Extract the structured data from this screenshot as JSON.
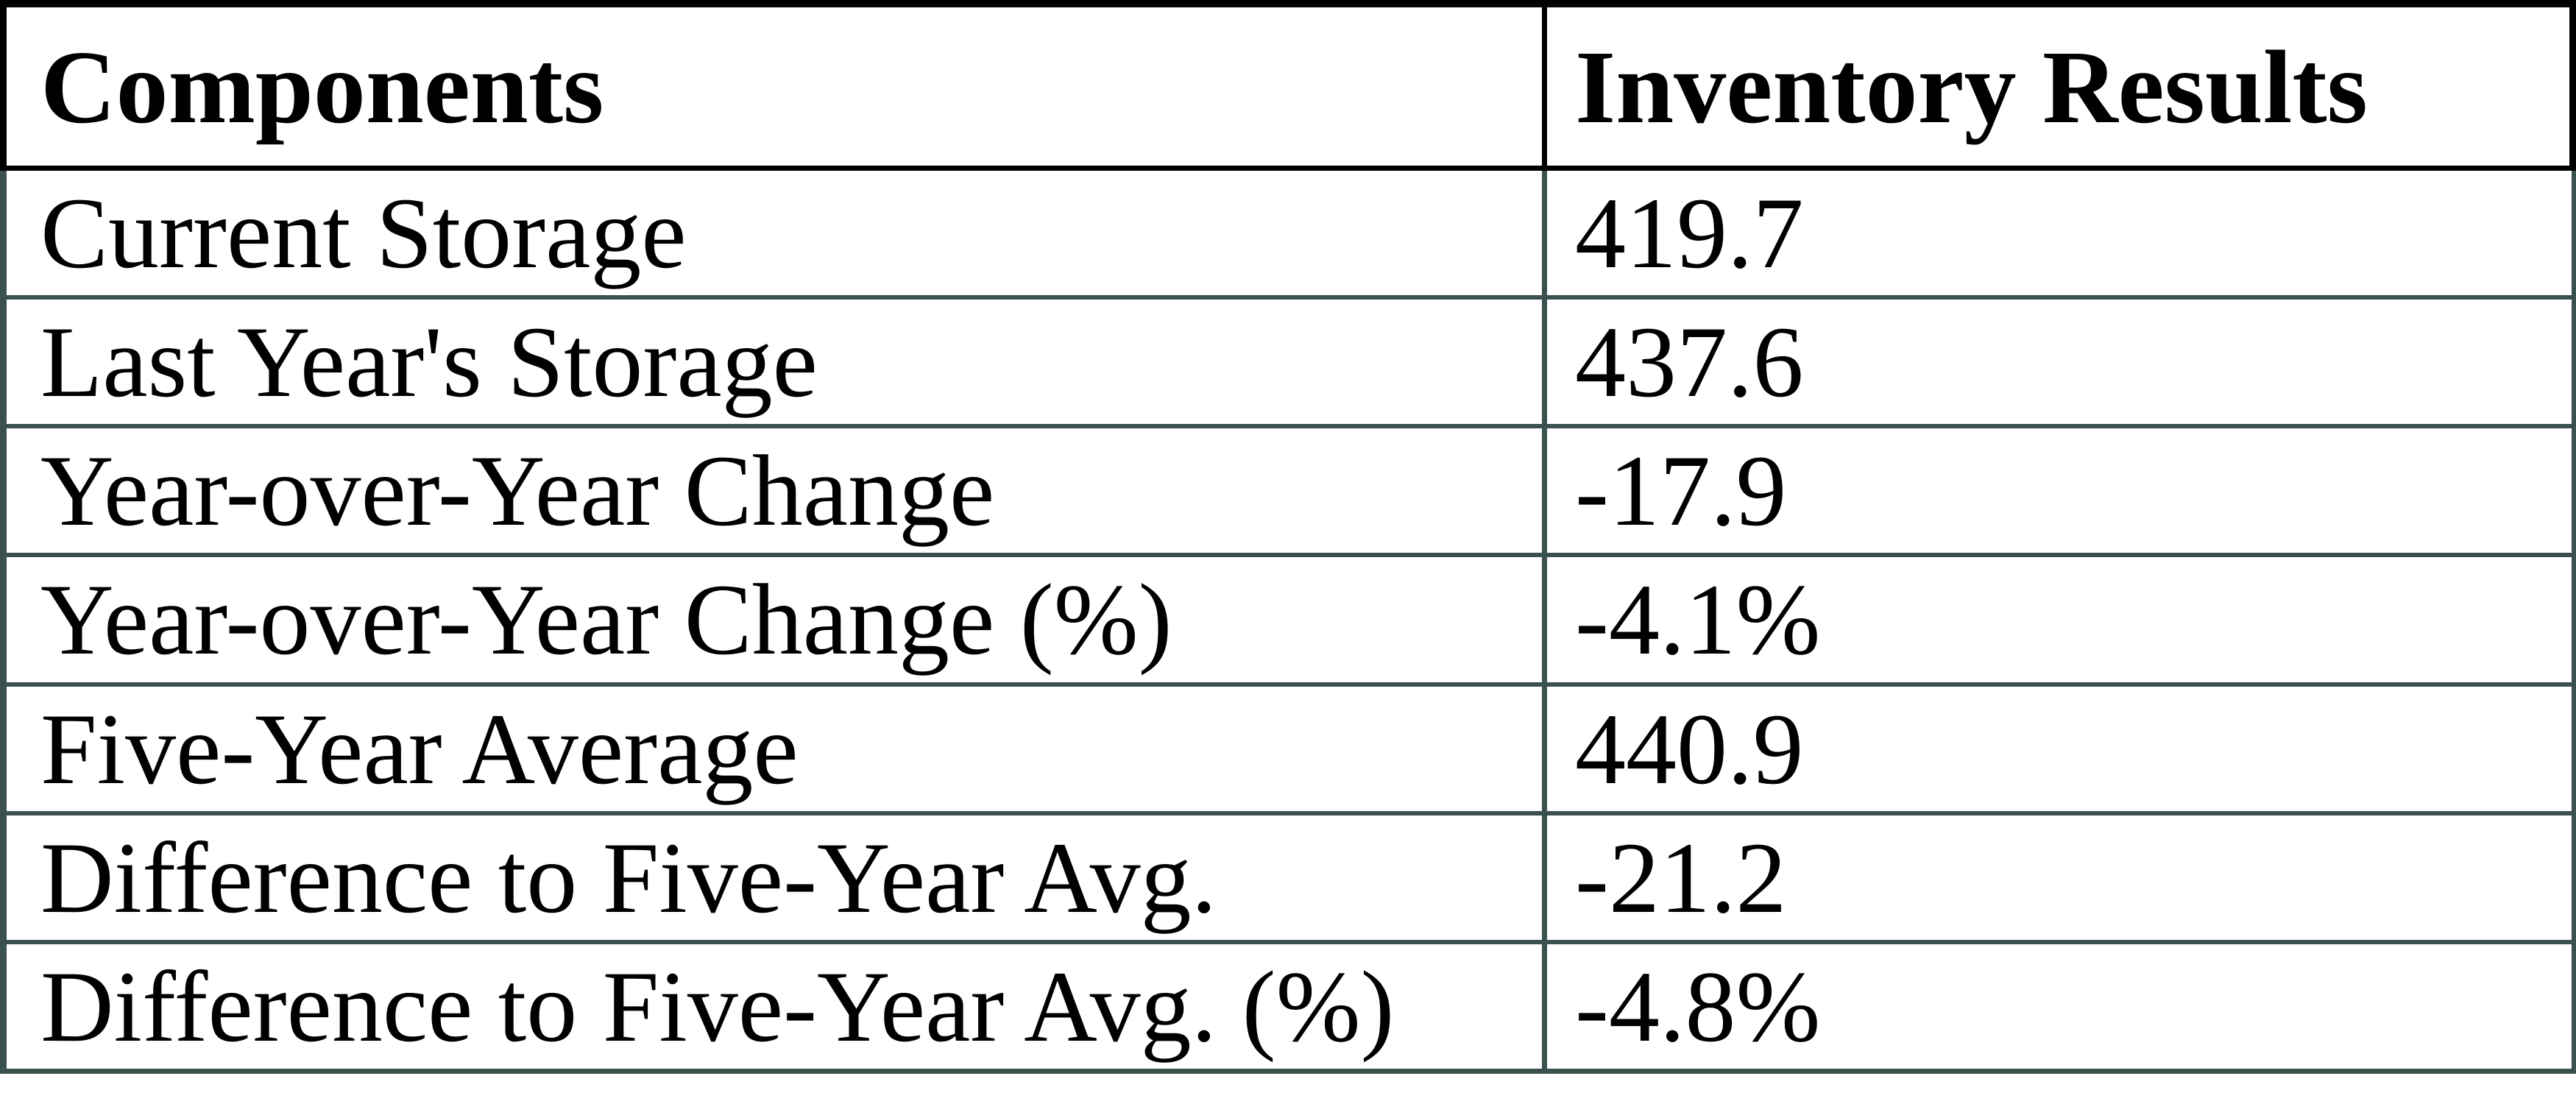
{
  "chart_data": {
    "type": "table",
    "columns": [
      "Components",
      "Inventory Results"
    ],
    "rows": [
      {
        "component": "Current Storage",
        "value": "419.7"
      },
      {
        "component": "Last Year's Storage",
        "value": "437.6"
      },
      {
        "component": "Year-over-Year Change",
        "value": "-17.9"
      },
      {
        "component": "Year-over-Year Change (%)",
        "value": "-4.1%"
      },
      {
        "component": "Five-Year Average",
        "value": "440.9"
      },
      {
        "component": "Difference to Five-Year Avg.",
        "value": "-21.2"
      },
      {
        "component": "Difference to Five-Year Avg. (%)",
        "value": "-4.8%"
      }
    ]
  },
  "theme": {
    "header_border_color": "#000000",
    "body_border_color": "#3A5150",
    "text_color": "#000000",
    "background_color": "#FFFFFF"
  }
}
